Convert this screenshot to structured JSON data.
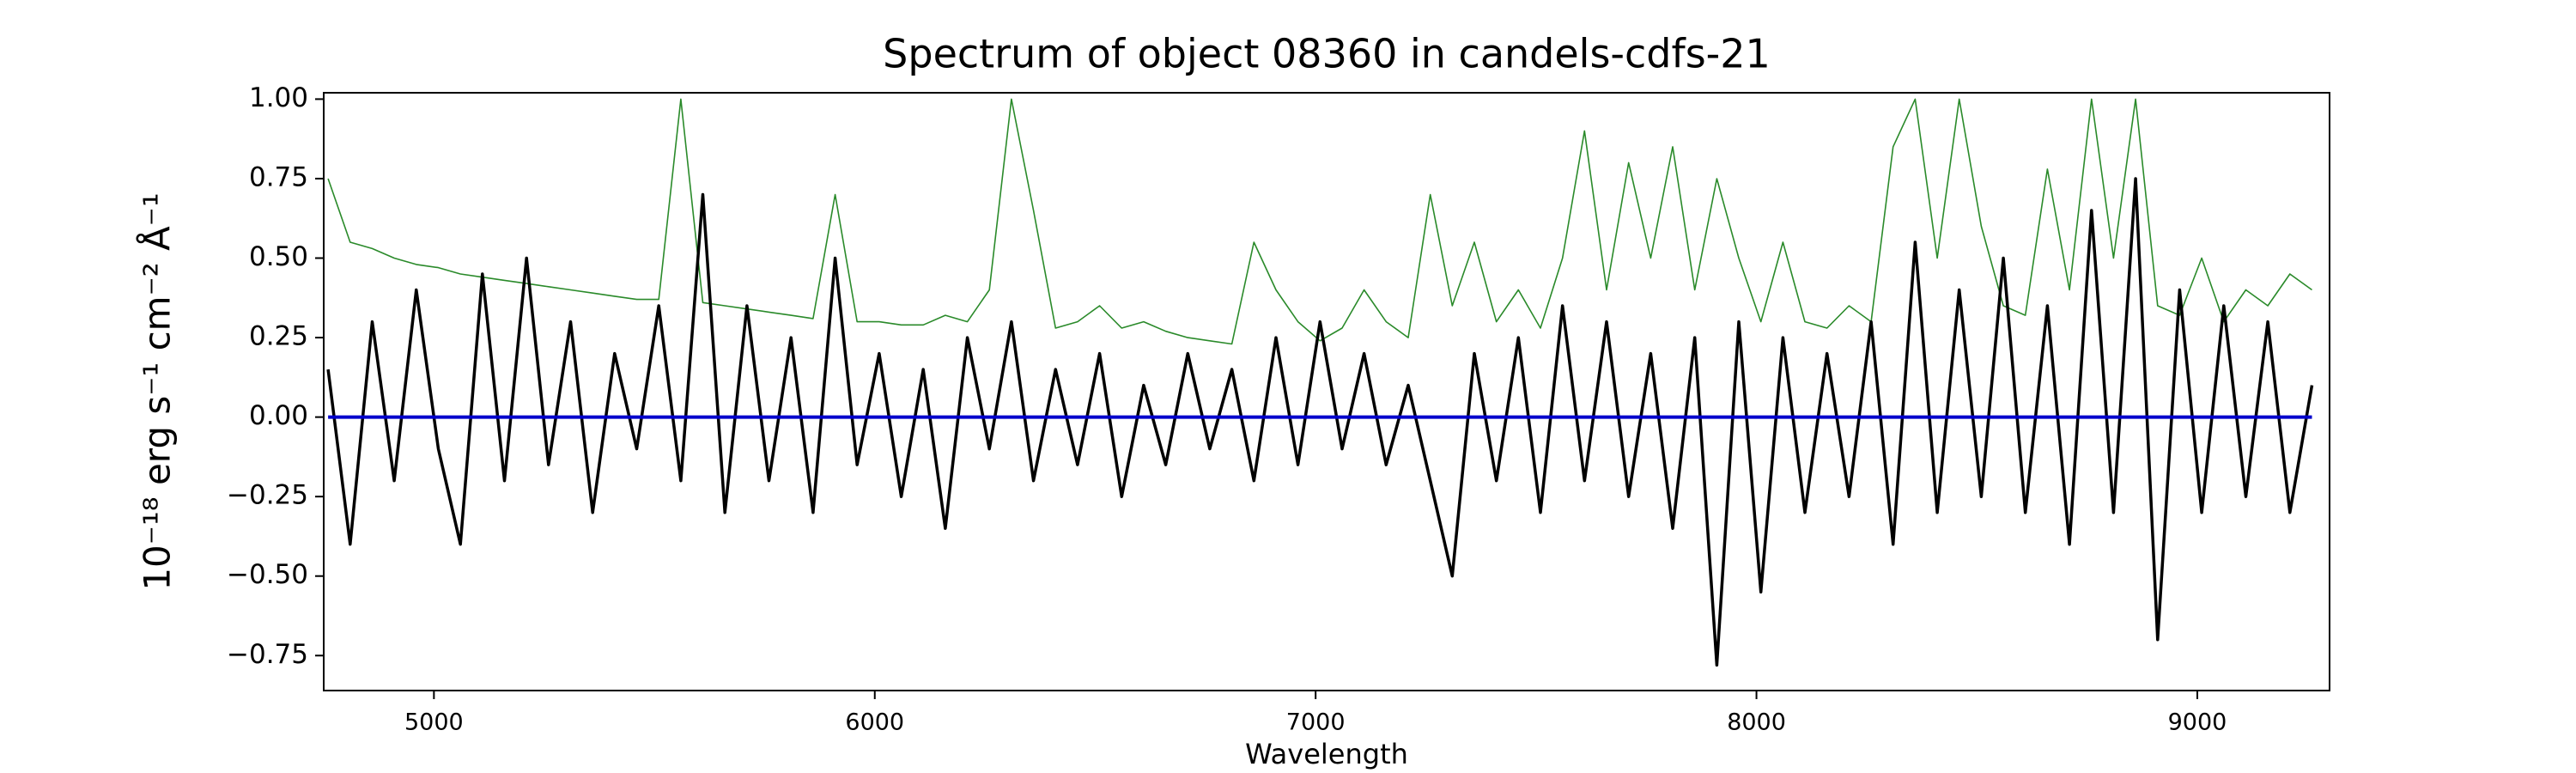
{
  "chart_data": {
    "type": "line",
    "title": "Spectrum of object 08360 in candels-cdfs-21",
    "xlabel": "Wavelength",
    "ylabel": "10⁻¹⁸ erg s⁻¹ cm⁻² Å⁻¹",
    "x": [
      4760,
      4810,
      4860,
      4910,
      4960,
      5010,
      5060,
      5110,
      5160,
      5210,
      5260,
      5310,
      5360,
      5410,
      5460,
      5510,
      5560,
      5610,
      5660,
      5710,
      5760,
      5810,
      5860,
      5910,
      5960,
      6010,
      6060,
      6110,
      6160,
      6210,
      6260,
      6310,
      6360,
      6410,
      6460,
      6510,
      6560,
      6610,
      6660,
      6710,
      6760,
      6810,
      6860,
      6910,
      6960,
      7010,
      7060,
      7110,
      7160,
      7210,
      7260,
      7310,
      7360,
      7410,
      7460,
      7510,
      7560,
      7610,
      7660,
      7710,
      7760,
      7810,
      7860,
      7910,
      7960,
      8010,
      8060,
      8110,
      8160,
      8210,
      8260,
      8310,
      8360,
      8410,
      8460,
      8510,
      8560,
      8610,
      8660,
      8710,
      8760,
      8810,
      8860,
      8910,
      8960,
      9010,
      9060,
      9110,
      9160,
      9210,
      9260
    ],
    "series": [
      {
        "color": "#2a8a2a",
        "values": [
          0.75,
          0.55,
          0.53,
          0.5,
          0.48,
          0.47,
          0.45,
          0.44,
          0.43,
          0.42,
          0.41,
          0.4,
          0.39,
          0.38,
          0.37,
          0.37,
          1.0,
          0.36,
          0.35,
          0.34,
          0.33,
          0.32,
          0.31,
          0.7,
          0.3,
          0.3,
          0.29,
          0.29,
          0.32,
          0.3,
          0.4,
          1.0,
          0.65,
          0.28,
          0.3,
          0.35,
          0.28,
          0.3,
          0.27,
          0.25,
          0.24,
          0.23,
          0.55,
          0.4,
          0.3,
          0.24,
          0.28,
          0.4,
          0.3,
          0.25,
          0.7,
          0.35,
          0.55,
          0.3,
          0.4,
          0.28,
          0.5,
          0.9,
          0.4,
          0.8,
          0.5,
          0.85,
          0.4,
          0.75,
          0.5,
          0.3,
          0.55,
          0.3,
          0.28,
          0.35,
          0.3,
          0.85,
          1.0,
          0.5,
          1.0,
          0.6,
          0.35,
          0.32,
          0.78,
          0.4,
          1.0,
          0.5,
          1.0,
          0.35,
          0.32,
          0.5,
          0.3,
          0.4,
          0.35,
          0.45,
          0.4
        ]
      },
      {
        "color": "#000000",
        "values": [
          0.15,
          -0.4,
          0.3,
          -0.2,
          0.4,
          -0.1,
          -0.4,
          0.45,
          -0.2,
          0.5,
          -0.15,
          0.3,
          -0.3,
          0.2,
          -0.1,
          0.35,
          -0.2,
          0.7,
          -0.3,
          0.35,
          -0.2,
          0.25,
          -0.3,
          0.5,
          -0.15,
          0.2,
          -0.25,
          0.15,
          -0.35,
          0.25,
          -0.1,
          0.3,
          -0.2,
          0.15,
          -0.15,
          0.2,
          -0.25,
          0.1,
          -0.15,
          0.2,
          -0.1,
          0.15,
          -0.2,
          0.25,
          -0.15,
          0.3,
          -0.1,
          0.2,
          -0.15,
          0.1,
          -0.2,
          -0.5,
          0.2,
          -0.2,
          0.25,
          -0.3,
          0.35,
          -0.2,
          0.3,
          -0.25,
          0.2,
          -0.35,
          0.25,
          -0.78,
          0.3,
          -0.55,
          0.25,
          -0.3,
          0.2,
          -0.25,
          0.3,
          -0.4,
          0.55,
          -0.3,
          0.4,
          -0.25,
          0.5,
          -0.3,
          0.35,
          -0.4,
          0.65,
          -0.3,
          0.75,
          -0.7,
          0.4,
          -0.3,
          0.35,
          -0.25,
          0.3,
          -0.3,
          0.1
        ]
      },
      {
        "color": "#0000cc",
        "values": [
          0,
          0,
          0,
          0,
          0,
          0,
          0,
          0,
          0,
          0,
          0,
          0,
          0,
          0,
          0,
          0,
          0,
          0,
          0,
          0,
          0,
          0,
          0,
          0,
          0,
          0,
          0,
          0,
          0,
          0,
          0,
          0,
          0,
          0,
          0,
          0,
          0,
          0,
          0,
          0,
          0,
          0,
          0,
          0,
          0,
          0,
          0,
          0,
          0,
          0,
          0,
          0,
          0,
          0,
          0,
          0,
          0,
          0,
          0,
          0,
          0,
          0,
          0,
          0,
          0,
          0,
          0,
          0,
          0,
          0,
          0,
          0,
          0,
          0,
          0,
          0,
          0,
          0,
          0,
          0,
          0,
          0,
          0,
          0,
          0,
          0,
          0,
          0,
          0,
          0,
          0
        ]
      }
    ],
    "xlim": [
      4750,
      9300
    ],
    "ylim": [
      -0.86,
      1.02
    ],
    "xticks": [
      5000,
      6000,
      7000,
      8000,
      9000
    ],
    "yticks": [
      {
        "value": -0.75,
        "label": "−0.75"
      },
      {
        "value": -0.5,
        "label": "−0.50"
      },
      {
        "value": -0.25,
        "label": "−0.25"
      },
      {
        "value": 0,
        "label": "0.00"
      },
      {
        "value": 0.25,
        "label": "0.25"
      },
      {
        "value": 0.5,
        "label": "0.50"
      },
      {
        "value": 0.75,
        "label": "0.75"
      },
      {
        "value": 1,
        "label": "1.00"
      }
    ]
  }
}
